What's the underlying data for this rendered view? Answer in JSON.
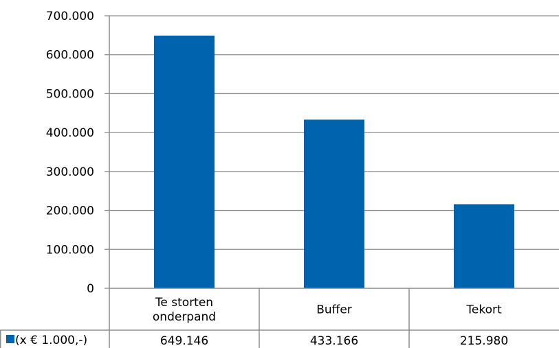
{
  "chart_data": {
    "type": "bar",
    "categories": [
      [
        "Te storten",
        "onderpand"
      ],
      [
        "Buffer"
      ],
      [
        "Tekort"
      ]
    ],
    "series": [
      {
        "name": "(x € 1.000,-)",
        "values": [
          649146,
          433166,
          215980
        ],
        "color": "#0063AE"
      }
    ],
    "table_values": [
      "649.146",
      "433.166",
      "215.980"
    ],
    "y_ticks": [
      "0",
      "100.000",
      "200.000",
      "300.000",
      "400.000",
      "500.000",
      "600.000",
      "700.000"
    ],
    "ylim": [
      0,
      700000
    ],
    "grid": true,
    "legend": "data-table",
    "title": "",
    "xlabel": "",
    "ylabel": ""
  }
}
